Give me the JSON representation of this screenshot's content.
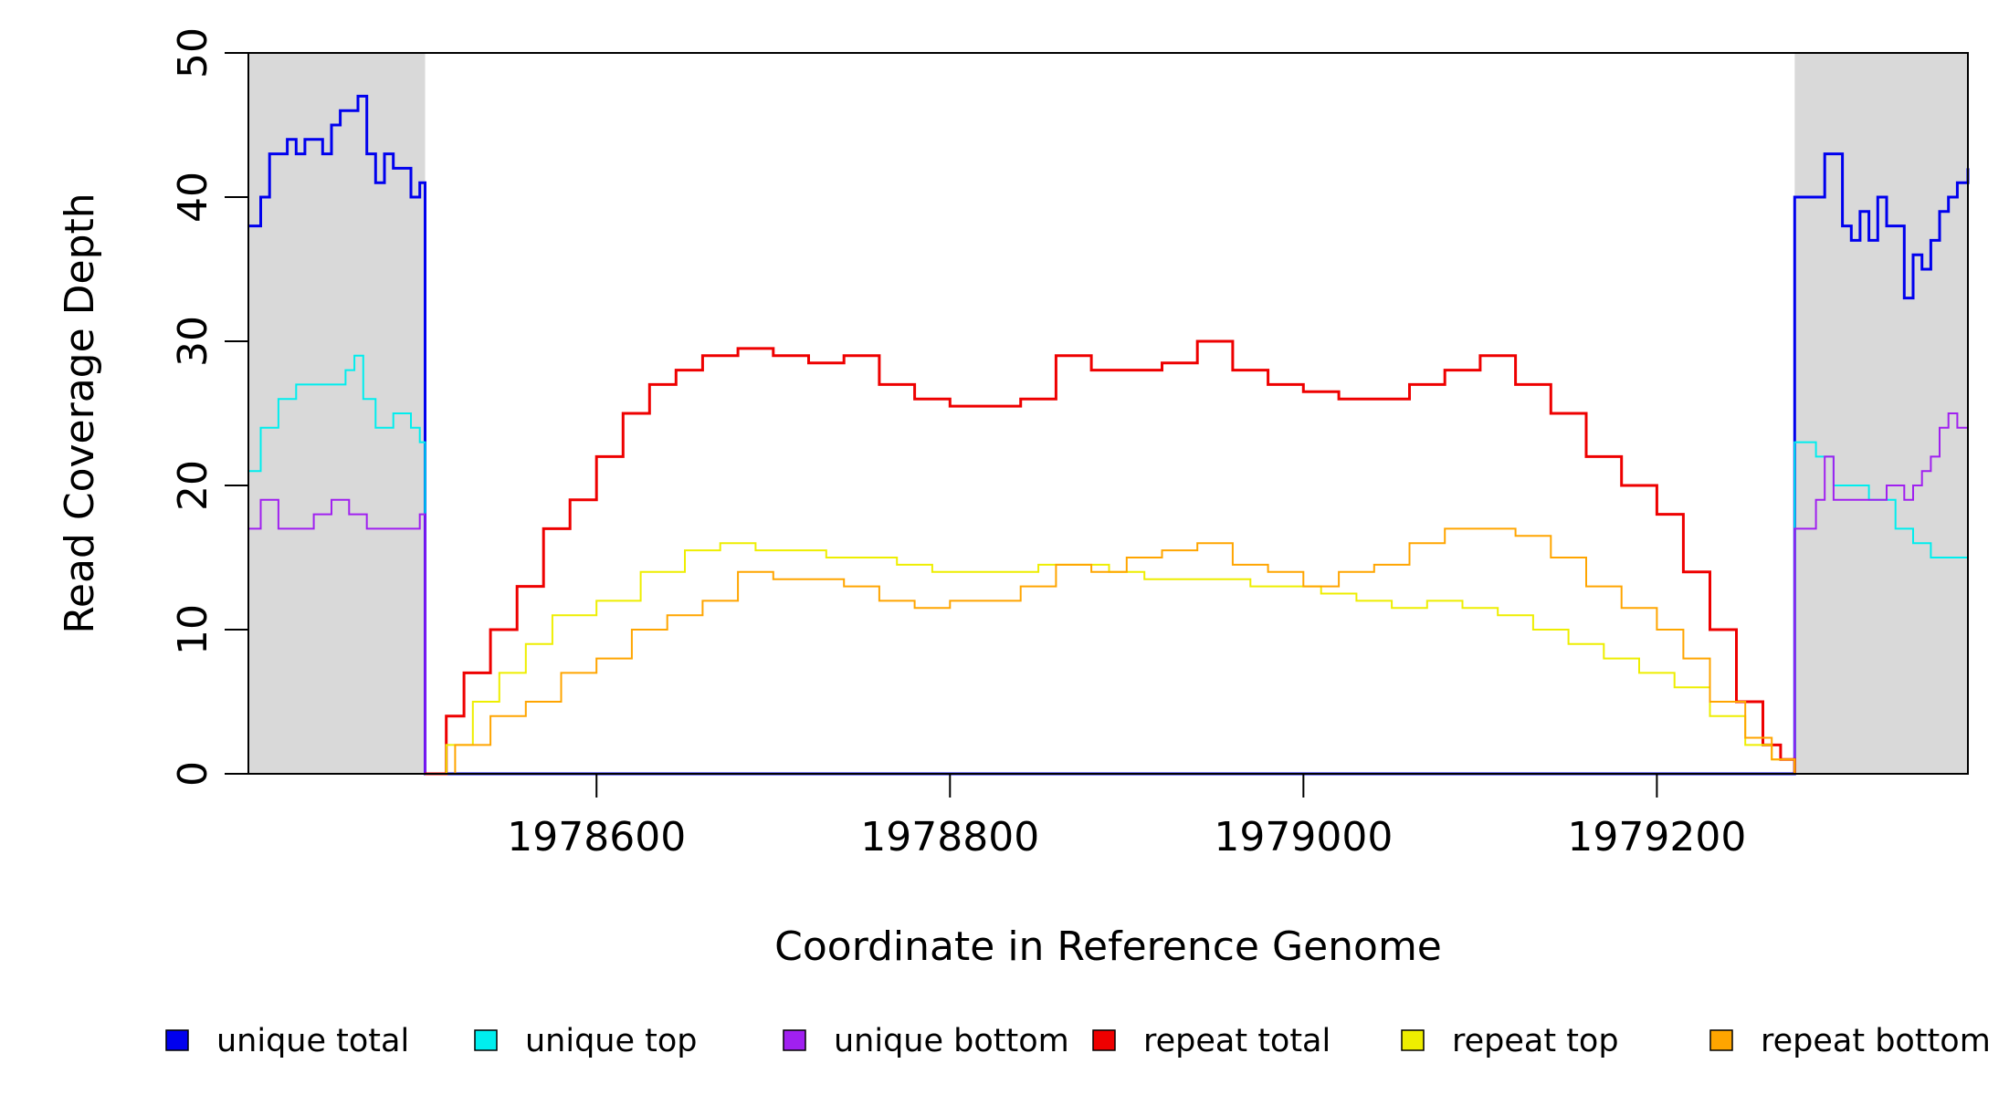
{
  "chart_data": {
    "type": "line",
    "xlabel": "Coordinate in Reference Genome",
    "ylabel": "Read Coverage Depth",
    "xlim": [
      1978403,
      1979376
    ],
    "ylim": [
      0,
      50
    ],
    "x_ticks": [
      1978600,
      1978800,
      1979000,
      1979200
    ],
    "y_ticks": [
      0,
      10,
      20,
      30,
      40,
      50
    ],
    "grid": false,
    "legend_position": "bottom",
    "shaded_regions": [
      {
        "x": [
          1978403,
          1978503
        ],
        "color": "#d9d9d9"
      },
      {
        "x": [
          1979278,
          1979376
        ],
        "color": "#d9d9d9"
      }
    ],
    "series": [
      {
        "name": "unique total",
        "color": "#0000ee",
        "points": [
          [
            1978403,
            38
          ],
          [
            1978410,
            40
          ],
          [
            1978415,
            43
          ],
          [
            1978420,
            43
          ],
          [
            1978425,
            44
          ],
          [
            1978430,
            43
          ],
          [
            1978435,
            44
          ],
          [
            1978440,
            44
          ],
          [
            1978445,
            43
          ],
          [
            1978450,
            45
          ],
          [
            1978455,
            46
          ],
          [
            1978460,
            46
          ],
          [
            1978465,
            47
          ],
          [
            1978470,
            43
          ],
          [
            1978475,
            41
          ],
          [
            1978480,
            43
          ],
          [
            1978485,
            42
          ],
          [
            1978490,
            42
          ],
          [
            1978495,
            40
          ],
          [
            1978500,
            41
          ],
          [
            1978503,
            39
          ],
          [
            1978503,
            0
          ],
          [
            1979278,
            0
          ],
          [
            1979278,
            40
          ],
          [
            1979290,
            40
          ],
          [
            1979295,
            43
          ],
          [
            1979305,
            38
          ],
          [
            1979310,
            37
          ],
          [
            1979315,
            39
          ],
          [
            1979320,
            37
          ],
          [
            1979325,
            40
          ],
          [
            1979330,
            38
          ],
          [
            1979335,
            38
          ],
          [
            1979340,
            33
          ],
          [
            1979345,
            36
          ],
          [
            1979350,
            35
          ],
          [
            1979355,
            37
          ],
          [
            1979360,
            39
          ],
          [
            1979365,
            40
          ],
          [
            1979370,
            41
          ],
          [
            1979376,
            42
          ]
        ]
      },
      {
        "name": "unique top",
        "color": "#00eeee",
        "points": [
          [
            1978403,
            21
          ],
          [
            1978410,
            24
          ],
          [
            1978420,
            26
          ],
          [
            1978430,
            27
          ],
          [
            1978440,
            27
          ],
          [
            1978450,
            27
          ],
          [
            1978458,
            28
          ],
          [
            1978463,
            29
          ],
          [
            1978468,
            26
          ],
          [
            1978475,
            24
          ],
          [
            1978485,
            25
          ],
          [
            1978495,
            24
          ],
          [
            1978500,
            23
          ],
          [
            1978503,
            16
          ],
          [
            1978503,
            0
          ],
          [
            1979278,
            0
          ],
          [
            1979278,
            23
          ],
          [
            1979290,
            22
          ],
          [
            1979300,
            20
          ],
          [
            1979310,
            20
          ],
          [
            1979320,
            19
          ],
          [
            1979330,
            19
          ],
          [
            1979335,
            17
          ],
          [
            1979345,
            16
          ],
          [
            1979355,
            15
          ],
          [
            1979365,
            15
          ],
          [
            1979376,
            15
          ]
        ]
      },
      {
        "name": "unique bottom",
        "color": "#a020f0",
        "points": [
          [
            1978403,
            17
          ],
          [
            1978410,
            19
          ],
          [
            1978420,
            17
          ],
          [
            1978430,
            17
          ],
          [
            1978440,
            18
          ],
          [
            1978450,
            19
          ],
          [
            1978460,
            18
          ],
          [
            1978470,
            17
          ],
          [
            1978480,
            17
          ],
          [
            1978490,
            17
          ],
          [
            1978500,
            18
          ],
          [
            1978503,
            0
          ],
          [
            1979278,
            0
          ],
          [
            1979278,
            17
          ],
          [
            1979290,
            19
          ],
          [
            1979295,
            22
          ],
          [
            1979300,
            19
          ],
          [
            1979310,
            19
          ],
          [
            1979320,
            19
          ],
          [
            1979330,
            20
          ],
          [
            1979340,
            19
          ],
          [
            1979345,
            20
          ],
          [
            1979350,
            21
          ],
          [
            1979355,
            22
          ],
          [
            1979360,
            24
          ],
          [
            1979365,
            25
          ],
          [
            1979370,
            24
          ],
          [
            1979376,
            26
          ]
        ]
      },
      {
        "name": "repeat total",
        "color": "#ee0000",
        "points": [
          [
            1978503,
            0
          ],
          [
            1978515,
            4
          ],
          [
            1978525,
            7
          ],
          [
            1978540,
            10
          ],
          [
            1978555,
            13
          ],
          [
            1978570,
            17
          ],
          [
            1978585,
            19
          ],
          [
            1978600,
            22
          ],
          [
            1978615,
            25
          ],
          [
            1978630,
            27
          ],
          [
            1978645,
            28
          ],
          [
            1978660,
            29
          ],
          [
            1978680,
            29.5
          ],
          [
            1978700,
            29
          ],
          [
            1978720,
            28.5
          ],
          [
            1978740,
            29
          ],
          [
            1978760,
            27
          ],
          [
            1978780,
            26
          ],
          [
            1978800,
            25.5
          ],
          [
            1978820,
            25.5
          ],
          [
            1978840,
            26
          ],
          [
            1978860,
            29
          ],
          [
            1978880,
            28
          ],
          [
            1978900,
            28
          ],
          [
            1978920,
            28.5
          ],
          [
            1978940,
            30
          ],
          [
            1978960,
            28
          ],
          [
            1978980,
            27
          ],
          [
            1979000,
            26.5
          ],
          [
            1979020,
            26
          ],
          [
            1979040,
            26
          ],
          [
            1979060,
            27
          ],
          [
            1979080,
            28
          ],
          [
            1979100,
            29
          ],
          [
            1979120,
            27
          ],
          [
            1979140,
            25
          ],
          [
            1979160,
            22
          ],
          [
            1979180,
            20
          ],
          [
            1979200,
            18
          ],
          [
            1979215,
            14
          ],
          [
            1979230,
            10
          ],
          [
            1979245,
            5
          ],
          [
            1979260,
            2
          ],
          [
            1979270,
            1
          ],
          [
            1979278,
            0
          ]
        ]
      },
      {
        "name": "repeat top",
        "color": "#eeee00",
        "points": [
          [
            1978503,
            0
          ],
          [
            1978515,
            2
          ],
          [
            1978530,
            5
          ],
          [
            1978545,
            7
          ],
          [
            1978560,
            9
          ],
          [
            1978575,
            11
          ],
          [
            1978600,
            12
          ],
          [
            1978625,
            14
          ],
          [
            1978650,
            15.5
          ],
          [
            1978670,
            16
          ],
          [
            1978690,
            15.5
          ],
          [
            1978710,
            15.5
          ],
          [
            1978730,
            15
          ],
          [
            1978750,
            15
          ],
          [
            1978770,
            14.5
          ],
          [
            1978790,
            14
          ],
          [
            1978810,
            14
          ],
          [
            1978830,
            14
          ],
          [
            1978850,
            14.5
          ],
          [
            1978870,
            14.5
          ],
          [
            1978890,
            14
          ],
          [
            1978910,
            13.5
          ],
          [
            1978930,
            13.5
          ],
          [
            1978950,
            13.5
          ],
          [
            1978970,
            13
          ],
          [
            1978990,
            13
          ],
          [
            1979010,
            12.5
          ],
          [
            1979030,
            12
          ],
          [
            1979050,
            11.5
          ],
          [
            1979070,
            12
          ],
          [
            1979090,
            11.5
          ],
          [
            1979110,
            11
          ],
          [
            1979130,
            10
          ],
          [
            1979150,
            9
          ],
          [
            1979170,
            8
          ],
          [
            1979190,
            7
          ],
          [
            1979210,
            6
          ],
          [
            1979230,
            4
          ],
          [
            1979250,
            2
          ],
          [
            1979265,
            1
          ],
          [
            1979278,
            0
          ]
        ]
      },
      {
        "name": "repeat bottom",
        "color": "#ffa500",
        "points": [
          [
            1978503,
            0
          ],
          [
            1978520,
            2
          ],
          [
            1978540,
            4
          ],
          [
            1978560,
            5
          ],
          [
            1978580,
            7
          ],
          [
            1978600,
            8
          ],
          [
            1978620,
            10
          ],
          [
            1978640,
            11
          ],
          [
            1978660,
            12
          ],
          [
            1978680,
            14
          ],
          [
            1978700,
            13.5
          ],
          [
            1978720,
            13.5
          ],
          [
            1978740,
            13
          ],
          [
            1978760,
            12
          ],
          [
            1978780,
            11.5
          ],
          [
            1978800,
            12
          ],
          [
            1978820,
            12
          ],
          [
            1978840,
            13
          ],
          [
            1978860,
            14.5
          ],
          [
            1978880,
            14
          ],
          [
            1978900,
            15
          ],
          [
            1978920,
            15.5
          ],
          [
            1978940,
            16
          ],
          [
            1978960,
            14.5
          ],
          [
            1978980,
            14
          ],
          [
            1979000,
            13
          ],
          [
            1979020,
            14
          ],
          [
            1979040,
            14.5
          ],
          [
            1979060,
            16
          ],
          [
            1979080,
            17
          ],
          [
            1979100,
            17
          ],
          [
            1979120,
            16.5
          ],
          [
            1979140,
            15
          ],
          [
            1979160,
            13
          ],
          [
            1979180,
            11.5
          ],
          [
            1979200,
            10
          ],
          [
            1979215,
            8
          ],
          [
            1979230,
            5
          ],
          [
            1979250,
            2.5
          ],
          [
            1979265,
            1
          ],
          [
            1979278,
            0
          ]
        ]
      }
    ]
  }
}
